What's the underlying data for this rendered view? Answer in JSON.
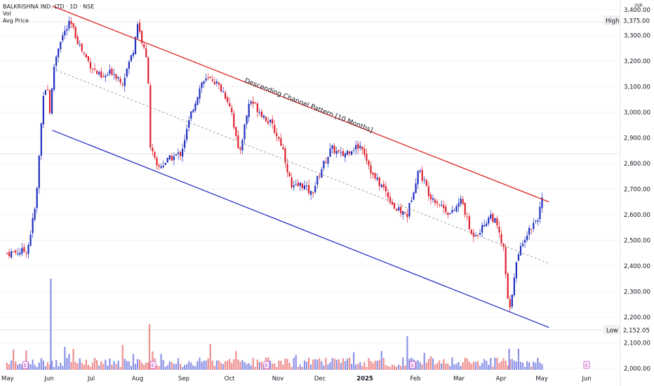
{
  "header": {
    "symbol": "BALKRISHNA IND. LTD · 1D · NSE",
    "indicator_vol": "Vol",
    "indicator_avg": "Avg Price"
  },
  "axis": {
    "currency": "INR",
    "ticks": [
      "2,000.00",
      "2,100.00",
      "2,200.00",
      "2,300.00",
      "2,400.00",
      "2,500.00",
      "2,600.00",
      "2,700.00",
      "2,800.00",
      "2,900.00",
      "3,000.00",
      "3,100.00",
      "3,200.00",
      "3,300.00",
      "3,400.00"
    ],
    "months": [
      "May",
      "Jun",
      "Jul",
      "Aug",
      "Sep",
      "Oct",
      "Nov",
      "Dec",
      "2025",
      "Feb",
      "Mar",
      "Apr",
      "May",
      "Jun"
    ]
  },
  "markers": {
    "high": {
      "label": "High",
      "value": "3,375.00"
    },
    "low": {
      "label": "Low",
      "value": "2,152.05"
    },
    "earnings_letter": "E"
  },
  "annotation": "Descending Channel Pattern [10 Months]",
  "colors": {
    "up": "#1f2fbf",
    "down": "#e0202e",
    "upper_line": "#e02424",
    "lower_line": "#2b33c4",
    "mid_line": "#8a8a8a",
    "vol_up": "#8b92e6",
    "vol_down": "#ee8e8e",
    "earnings": "#c040c0"
  },
  "chart_data": {
    "type": "candlestick",
    "symbol": "BALKRISHNA IND. LTD",
    "interval": "1D",
    "exchange": "NSE",
    "ylim": [
      2000,
      3420
    ],
    "high": 3375.0,
    "low": 2152.05,
    "months": [
      "May",
      "Jun",
      "Jul",
      "Aug",
      "Sep",
      "Oct",
      "Nov",
      "Dec",
      "2025",
      "Feb",
      "Mar",
      "Apr",
      "May",
      "Jun"
    ],
    "price_path": [
      [
        "2024-05-01",
        2450
      ],
      [
        "2024-05-17",
        2460
      ],
      [
        "2024-05-24",
        2650
      ],
      [
        "2024-05-27",
        2880
      ],
      [
        "2024-05-30",
        3100
      ],
      [
        "2024-06-03",
        3080
      ],
      [
        "2024-06-04",
        2860
      ],
      [
        "2024-06-05",
        3150
      ],
      [
        "2024-06-10",
        3280
      ],
      [
        "2024-06-17",
        3350
      ],
      [
        "2024-06-24",
        3250
      ],
      [
        "2024-07-01",
        3180
      ],
      [
        "2024-07-08",
        3130
      ],
      [
        "2024-07-15",
        3160
      ],
      [
        "2024-07-22",
        3120
      ],
      [
        "2024-07-29",
        3240
      ],
      [
        "2024-08-01",
        3350
      ],
      [
        "2024-08-05",
        3250
      ],
      [
        "2024-08-08",
        3180
      ],
      [
        "2024-08-09",
        2880
      ],
      [
        "2024-08-14",
        2780
      ],
      [
        "2024-08-23",
        2820
      ],
      [
        "2024-08-30",
        2840
      ],
      [
        "2024-09-06",
        3000
      ],
      [
        "2024-09-13",
        3120
      ],
      [
        "2024-09-20",
        3130
      ],
      [
        "2024-09-27",
        3080
      ],
      [
        "2024-10-02",
        3020
      ],
      [
        "2024-10-07",
        2830
      ],
      [
        "2024-10-14",
        3050
      ],
      [
        "2024-10-21",
        3000
      ],
      [
        "2024-10-28",
        2950
      ],
      [
        "2024-11-04",
        2870
      ],
      [
        "2024-11-11",
        2700
      ],
      [
        "2024-11-18",
        2720
      ],
      [
        "2024-11-25",
        2680
      ],
      [
        "2024-12-02",
        2780
      ],
      [
        "2024-12-09",
        2860
      ],
      [
        "2024-12-16",
        2830
      ],
      [
        "2024-12-23",
        2860
      ],
      [
        "2024-12-30",
        2870
      ],
      [
        "2025-01-06",
        2750
      ],
      [
        "2025-01-13",
        2700
      ],
      [
        "2025-01-20",
        2620
      ],
      [
        "2025-01-27",
        2600
      ],
      [
        "2025-02-03",
        2780
      ],
      [
        "2025-02-10",
        2680
      ],
      [
        "2025-02-17",
        2640
      ],
      [
        "2025-02-24",
        2600
      ],
      [
        "2025-03-03",
        2660
      ],
      [
        "2025-03-10",
        2520
      ],
      [
        "2025-03-17",
        2540
      ],
      [
        "2025-03-24",
        2600
      ],
      [
        "2025-03-28",
        2570
      ],
      [
        "2025-04-03",
        2460
      ],
      [
        "2025-04-07",
        2200
      ],
      [
        "2025-04-11",
        2380
      ],
      [
        "2025-04-17",
        2500
      ],
      [
        "2025-04-24",
        2560
      ],
      [
        "2025-04-28",
        2590
      ],
      [
        "2025-05-02",
        2670
      ]
    ],
    "channel": {
      "upper": {
        "from": [
          "2024-06-05",
          3415
        ],
        "to": [
          "2025-05-06",
          2650
        ]
      },
      "lower": {
        "from": [
          "2024-06-05",
          2930
        ],
        "to": [
          "2025-05-06",
          2160
        ]
      },
      "mid": {
        "from": [
          "2024-06-05",
          3170
        ],
        "to": [
          "2025-05-06",
          2410
        ]
      }
    },
    "annotation": "Descending Channel Pattern [10 Months]",
    "earnings_months": [
      "May",
      "Aug",
      "Nov",
      "Feb",
      "May"
    ]
  }
}
